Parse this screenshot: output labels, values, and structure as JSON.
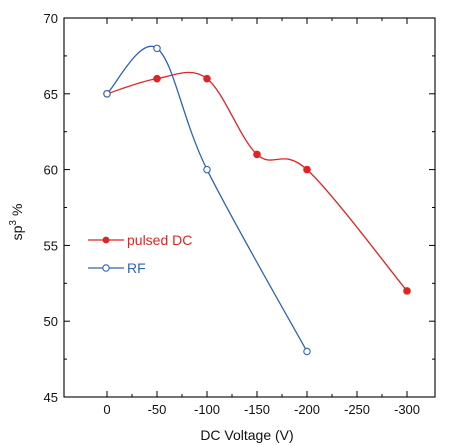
{
  "chart_data": {
    "type": "line",
    "xlabel": "DC Voltage (V)",
    "ylabel_main": "sp",
    "ylabel_sup": "3",
    "ylabel_unit": "%",
    "xlim": [
      0,
      -300
    ],
    "ylim": [
      45,
      70
    ],
    "x_ticks": [
      0,
      -50,
      -100,
      -150,
      -200,
      -250,
      -300
    ],
    "x_tick_labels": [
      "0",
      "-50",
      "-100",
      "-150",
      "-200",
      "-250",
      "-300"
    ],
    "y_ticks": [
      45,
      50,
      55,
      60,
      65,
      70
    ],
    "y_tick_labels": [
      "45",
      "50",
      "55",
      "60",
      "65",
      "70"
    ],
    "grid": false,
    "legend_position": "middle-left",
    "series": [
      {
        "name": "pulsed DC",
        "color": "#e02424",
        "marker": "filled-circle",
        "x": [
          0,
          -50,
          -100,
          -150,
          -200,
          -300
        ],
        "y": [
          65,
          66,
          66,
          61,
          60,
          52
        ]
      },
      {
        "name": "RF",
        "color": "#2f63b5",
        "marker": "open-circle",
        "x": [
          0,
          -50,
          -100,
          -200
        ],
        "y": [
          65,
          68,
          60,
          48
        ]
      }
    ]
  }
}
